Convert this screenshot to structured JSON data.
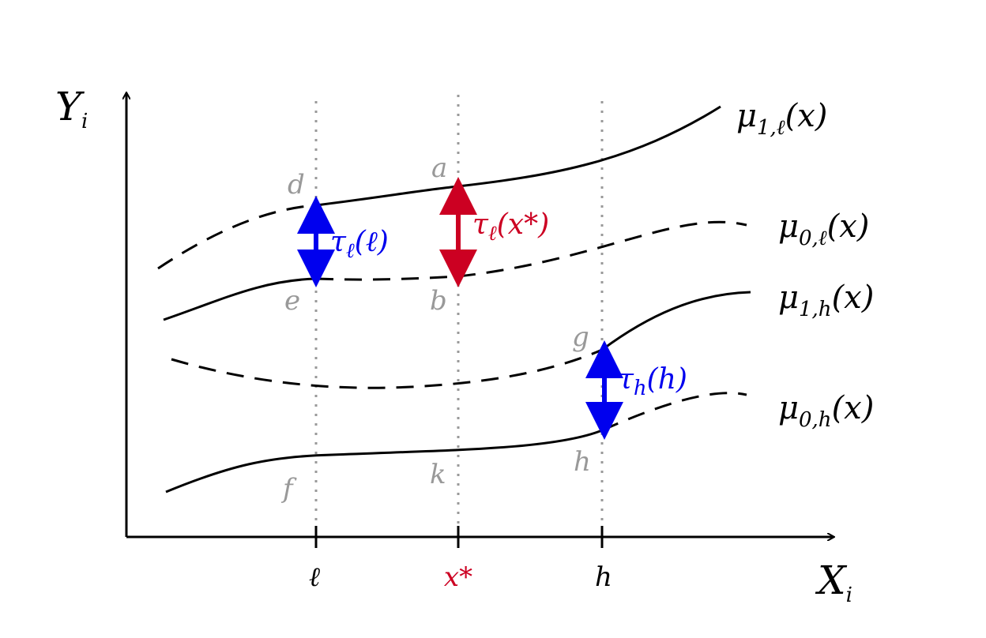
{
  "axes": {
    "y_label": {
      "base": "Y",
      "sub": "i"
    },
    "x_label": {
      "base": "X",
      "sub": "i"
    },
    "ticks": [
      "ℓ",
      "x*",
      "h"
    ]
  },
  "curves": [
    {
      "base": "μ",
      "sub": "1,ℓ",
      "tail": "(x)"
    },
    {
      "base": "μ",
      "sub": "0,ℓ",
      "tail": "(x)"
    },
    {
      "base": "μ",
      "sub": "1,h",
      "tail": "(x)"
    },
    {
      "base": "μ",
      "sub": "0,h",
      "tail": "(x)"
    }
  ],
  "effects": [
    {
      "base": "τ",
      "sub": "ℓ",
      "tail": "(ℓ)"
    },
    {
      "base": "τ",
      "sub": "ℓ",
      "tail": "(x*)"
    },
    {
      "base": "τ",
      "sub": "h",
      "tail": "(h)"
    }
  ],
  "points": [
    "d",
    "a",
    "e",
    "b",
    "g",
    "h",
    "f",
    "k"
  ]
}
